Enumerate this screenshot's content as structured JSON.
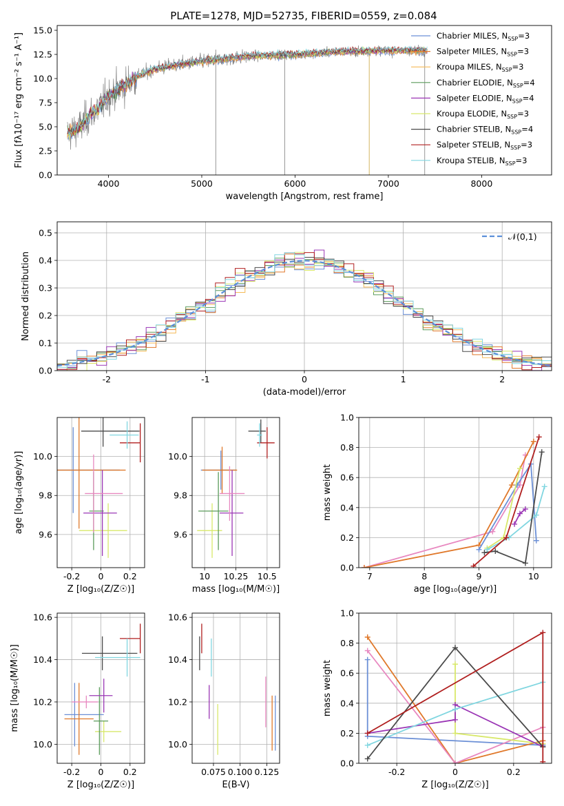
{
  "figure_title": "PLATE=1278, MJD=52735, FIBERID=0559, z=0.084",
  "colors": {
    "Chabrier MILES": "#6b8fd6",
    "Salpeter MILES": "#e0782a",
    "Kroupa MILES": "#f5b955",
    "Chabrier ELODIE": "#5a9a5a",
    "Salpeter ELODIE": "#9a35b5",
    "Kroupa ELODIE": "#d8e86a",
    "Chabrier STELIB": "#4a4a4a",
    "Salpeter STELIB": "#b01e1e",
    "Kroupa STELIB": "#80d6e0",
    "pink": "#e888c0",
    "normal_curve": "#5b8fd9",
    "data": "#7f7f7f"
  },
  "chart_data": [
    {
      "id": "spectrum",
      "type": "line",
      "xlabel": "wavelength [Angstrom, rest frame]",
      "ylabel": "Flux [fλ10⁻¹⁷ erg cm⁻² s⁻¹ A⁻¹]",
      "xlim": [
        3450,
        8750
      ],
      "ylim": [
        0,
        15.5
      ],
      "xticks": [
        4000,
        5000,
        6000,
        7000,
        8000
      ],
      "yticks": [
        0.0,
        2.5,
        5.0,
        7.5,
        10.0,
        12.5,
        15.0
      ],
      "legend_position": "upper-right",
      "continuum": {
        "x": [
          3550,
          3700,
          3800,
          3900,
          4000,
          4100,
          4200,
          4300,
          4500,
          4800,
          5100,
          5500,
          6000,
          6500,
          7000,
          7400
        ],
        "y": [
          4.2,
          5.0,
          6.2,
          7.0,
          8.2,
          8.8,
          9.4,
          10.2,
          11.0,
          11.5,
          11.9,
          12.3,
          12.5,
          12.8,
          12.9,
          12.9
        ]
      },
      "legend": [
        {
          "name": "Chabrier MILES",
          "nssp": 3
        },
        {
          "name": "Salpeter MILES",
          "nssp": 3
        },
        {
          "name": "Kroupa MILES",
          "nssp": 3
        },
        {
          "name": "Chabrier ELODIE",
          "nssp": 4
        },
        {
          "name": "Salpeter ELODIE",
          "nssp": 4
        },
        {
          "name": "Kroupa ELODIE",
          "nssp": 3
        },
        {
          "name": "Chabrier STELIB",
          "nssp": 4
        },
        {
          "name": "Salpeter STELIB",
          "nssp": 3
        },
        {
          "name": "Kroupa STELIB",
          "nssp": 3
        }
      ]
    },
    {
      "id": "residuals",
      "type": "histogram",
      "xlabel": "(data-model)/error",
      "ylabel": "Normed distribution",
      "xlim": [
        -2.5,
        2.5
      ],
      "ylim": [
        0,
        0.54
      ],
      "xticks": [
        -2,
        -1,
        0,
        1,
        2
      ],
      "yticks": [
        0.0,
        0.1,
        0.2,
        0.3,
        0.4,
        0.5
      ],
      "grid": true,
      "legend_position": "upper-right",
      "normal_label": "𝒩(0,1)",
      "bin_edges_start": -2.5,
      "bin_width": 0.1
    },
    {
      "id": "age_vs_Z",
      "type": "errorbar",
      "xlabel": "Z [log₁₀(Z/Z☉)]",
      "ylabel": "age  [log₁₀(age/yr)]",
      "xlim": [
        -0.3,
        0.3
      ],
      "ylim": [
        9.43,
        10.2
      ],
      "xticks": [
        -0.2,
        0.0,
        0.2
      ],
      "yticks": [
        9.6,
        9.8,
        10.0
      ],
      "grid": true,
      "points": [
        {
          "series": "Chabrier MILES",
          "x": -0.19,
          "y": 9.93,
          "xerr": [
            0.24,
            0.32
          ],
          "yerr": 0.22
        },
        {
          "series": "Salpeter MILES",
          "x": -0.15,
          "y": 9.93,
          "xerr": [
            0.24,
            0.32
          ],
          "yerr": 0.3
        },
        {
          "series": "Kroupa ELODIE",
          "x": 0.05,
          "y": 9.62,
          "xerr": [
            0.2,
            0.13
          ],
          "yerr": 0.14
        },
        {
          "series": "Chabrier ELODIE",
          "x": -0.05,
          "y": 9.72,
          "xerr": [
            0.03,
            0.07
          ],
          "yerr": 0.2
        },
        {
          "series": "Salpeter ELODIE",
          "x": 0.01,
          "y": 9.71,
          "xerr": [
            0.13,
            0.1
          ],
          "yerr": 0.22
        },
        {
          "series": "Chabrier STELIB",
          "x": 0.015,
          "y": 10.13,
          "xerr": [
            0.15,
            0.25
          ],
          "yerr": 0.08
        },
        {
          "series": "Salpeter STELIB",
          "x": 0.27,
          "y": 10.07,
          "xerr": [
            0.14,
            0.0
          ],
          "yerr": 0.1
        },
        {
          "series": "Kroupa STELIB",
          "x": 0.18,
          "y": 10.11,
          "xerr": [
            0.12,
            0.08
          ],
          "yerr": 0.07
        },
        {
          "series": "pink",
          "x": -0.05,
          "y": 9.81,
          "xerr": [
            0.06,
            0.2
          ],
          "yerr": 0.2
        }
      ]
    },
    {
      "id": "age_vs_mass",
      "type": "errorbar",
      "xlabel": "mass [log₁₀(M/M☉)]",
      "ylabel": "",
      "xlim": [
        9.9,
        10.6
      ],
      "ylim": [
        9.43,
        10.2
      ],
      "xticks": [
        10.0,
        10.25,
        10.5
      ],
      "yticks": [
        9.6,
        9.8,
        10.0
      ],
      "grid": true,
      "points": [
        {
          "series": "Chabrier MILES",
          "x": 10.13,
          "y": 9.93,
          "xerr": [
            0.16,
            0.12
          ],
          "yerr": 0.1
        },
        {
          "series": "Salpeter MILES",
          "x": 10.14,
          "y": 9.93,
          "xerr": [
            0.16,
            0.12
          ],
          "yerr": 0.12
        },
        {
          "series": "Kroupa ELODIE",
          "x": 10.06,
          "y": 9.62,
          "xerr": [
            0.12,
            0.08
          ],
          "yerr": 0.14
        },
        {
          "series": "Chabrier ELODIE",
          "x": 10.11,
          "y": 9.72,
          "xerr": [
            0.16,
            0.08
          ],
          "yerr": 0.2
        },
        {
          "series": "Salpeter ELODIE",
          "x": 10.22,
          "y": 9.71,
          "xerr": [
            0.1,
            0.09
          ],
          "yerr": 0.22
        },
        {
          "series": "Chabrier STELIB",
          "x": 10.45,
          "y": 10.13,
          "xerr": [
            0.1,
            0.04
          ],
          "yerr": 0.06
        },
        {
          "series": "Salpeter STELIB",
          "x": 10.5,
          "y": 10.07,
          "xerr": [
            0.08,
            0.06
          ],
          "yerr": 0.08
        },
        {
          "series": "Kroupa STELIB",
          "x": 10.44,
          "y": 10.11,
          "xerr": [
            0.02,
            0.02
          ],
          "yerr": 0.06
        },
        {
          "series": "pink",
          "x": 10.2,
          "y": 9.81,
          "xerr": [
            0.08,
            0.12
          ],
          "yerr": 0.14
        }
      ]
    },
    {
      "id": "weight_vs_age",
      "type": "line",
      "xlabel": "age  [log₁₀(age/yr)]",
      "ylabel": "mass weight",
      "xlim": [
        6.8,
        10.33
      ],
      "ylim": [
        0,
        1.0
      ],
      "xticks": [
        7,
        8,
        9,
        10
      ],
      "yticks": [
        0.0,
        0.2,
        0.4,
        0.6,
        0.8,
        1.0
      ],
      "grid": true,
      "series": [
        {
          "name": "pink",
          "x": [
            6.9,
            9.25,
            9.75,
            9.85
          ],
          "y": [
            0.0,
            0.24,
            0.55,
            0.75
          ]
        },
        {
          "name": "Salpeter MILES",
          "x": [
            6.9,
            9.0,
            9.6,
            10.0
          ],
          "y": [
            0.0,
            0.15,
            0.55,
            0.84
          ]
        },
        {
          "name": "Chabrier MILES",
          "x": [
            9.0,
            9.7,
            9.95,
            10.05
          ],
          "y": [
            0.12,
            0.55,
            0.69,
            0.18
          ]
        },
        {
          "name": "Kroupa ELODIE",
          "x": [
            9.15,
            9.45,
            9.75
          ],
          "y": [
            0.13,
            0.2,
            0.66
          ]
        },
        {
          "name": "Kroupa STELIB",
          "x": [
            9.15,
            9.55,
            10.05,
            10.2
          ],
          "y": [
            0.12,
            0.2,
            0.35,
            0.54
          ]
        },
        {
          "name": "Salpeter ELODIE",
          "x": [
            9.65,
            9.75,
            9.85
          ],
          "y": [
            0.29,
            0.36,
            0.39
          ]
        },
        {
          "name": "Chabrier STELIB",
          "x": [
            9.1,
            9.3,
            9.85,
            10.15
          ],
          "y": [
            0.1,
            0.11,
            0.03,
            0.77
          ]
        },
        {
          "name": "Salpeter STELIB",
          "x": [
            8.9,
            9.5,
            10.1
          ],
          "y": [
            0.01,
            0.2,
            0.87
          ]
        }
      ]
    },
    {
      "id": "mass_vs_Z",
      "type": "errorbar",
      "xlabel": "Z [log₁₀(Z/Z☉)]",
      "ylabel": "mass [log₁₀(M/M☉)]",
      "xlim": [
        -0.3,
        0.3
      ],
      "ylim": [
        9.91,
        10.62
      ],
      "xticks": [
        -0.2,
        0.0,
        0.2
      ],
      "yticks": [
        10.0,
        10.2,
        10.4,
        10.6
      ],
      "grid": true,
      "points": [
        {
          "series": "Chabrier MILES",
          "x": -0.18,
          "y": 10.14,
          "xerr": [
            0.07,
            0.2
          ],
          "yerr": 0.15
        },
        {
          "series": "Salpeter MILES",
          "x": -0.15,
          "y": 10.12,
          "xerr": [
            0.1,
            0.1
          ],
          "yerr": 0.17
        },
        {
          "series": "pink",
          "x": -0.1,
          "y": 10.2,
          "xerr": [
            0.1,
            0.08
          ],
          "yerr": 0.03
        },
        {
          "series": "Kroupa ELODIE",
          "x": 0.02,
          "y": 10.06,
          "xerr": [
            0.06,
            0.12
          ],
          "yerr": 0.05
        },
        {
          "series": "Chabrier ELODIE",
          "x": -0.01,
          "y": 10.11,
          "xerr": [
            0.04,
            0.06
          ],
          "yerr": 0.16
        },
        {
          "series": "Salpeter ELODIE",
          "x": 0.02,
          "y": 10.23,
          "xerr": [
            0.1,
            0.06
          ],
          "yerr": 0.08
        },
        {
          "series": "Chabrier STELIB",
          "x": 0.01,
          "y": 10.43,
          "xerr": [
            0.14,
            0.24
          ],
          "yerr": 0.08
        },
        {
          "series": "Salpeter STELIB",
          "x": 0.27,
          "y": 10.5,
          "xerr": [
            0.14,
            0.0
          ],
          "yerr": 0.07
        },
        {
          "series": "Kroupa STELIB",
          "x": 0.18,
          "y": 10.41,
          "xerr": [
            0.22,
            0.09
          ],
          "yerr": 0.09
        }
      ]
    },
    {
      "id": "mass_vs_EBV",
      "type": "errorbar",
      "xlabel": "E(B-V)",
      "ylabel": "",
      "xlim": [
        0.055,
        0.137
      ],
      "ylim": [
        9.91,
        10.62
      ],
      "xticks": [
        0.075,
        0.1,
        0.125
      ],
      "xticklabels": [
        "0.075",
        "0.100",
        "0.125"
      ],
      "yticks": [
        10.0,
        10.2,
        10.4,
        10.6
      ],
      "grid": true,
      "points": [
        {
          "series": "Chabrier STELIB",
          "x": 0.062,
          "y": 10.43,
          "xerr": [
            0,
            0
          ],
          "yerr": 0.08
        },
        {
          "series": "Salpeter STELIB",
          "x": 0.064,
          "y": 10.5,
          "xerr": [
            0,
            0
          ],
          "yerr": 0.07
        },
        {
          "series": "Kroupa STELIB",
          "x": 0.073,
          "y": 10.41,
          "xerr": [
            0,
            0
          ],
          "yerr": 0.09
        },
        {
          "series": "Salpeter ELODIE",
          "x": 0.071,
          "y": 10.2,
          "xerr": [
            0,
            0
          ],
          "yerr": 0.08
        },
        {
          "series": "Kroupa ELODIE",
          "x": 0.079,
          "y": 10.07,
          "xerr": [
            0,
            0
          ],
          "yerr": 0.12
        },
        {
          "series": "pink",
          "x": 0.124,
          "y": 10.2,
          "xerr": [
            0,
            0
          ],
          "yerr": 0.12
        },
        {
          "series": "Salpeter MILES",
          "x": 0.13,
          "y": 10.1,
          "xerr": [
            0,
            0
          ],
          "yerr": 0.13
        },
        {
          "series": "Chabrier MILES",
          "x": 0.133,
          "y": 10.1,
          "xerr": [
            0,
            0
          ],
          "yerr": 0.13
        }
      ]
    },
    {
      "id": "weight_vs_Z",
      "type": "line",
      "xlabel": "Z [log₁₀(Z/Z☉)]",
      "ylabel": "mass weight",
      "xlim": [
        -0.33,
        0.33
      ],
      "ylim": [
        0,
        1.0
      ],
      "xticks": [
        -0.2,
        0.0,
        0.2
      ],
      "yticks": [
        0.0,
        0.2,
        0.4,
        0.6,
        0.8,
        1.0
      ],
      "grid": true,
      "series": [
        {
          "name": "Chabrier MILES",
          "x": [
            -0.3,
            -0.3,
            0.3,
            0.3
          ],
          "y": [
            0.69,
            0.18,
            0.12,
            0.12
          ]
        },
        {
          "name": "Salpeter MILES",
          "x": [
            -0.3,
            0.0,
            0.3,
            0.3
          ],
          "y": [
            0.84,
            0.0,
            0.15,
            0.15
          ]
        },
        {
          "name": "pink",
          "x": [
            -0.3,
            0.0,
            0.3,
            0.3
          ],
          "y": [
            0.75,
            0.0,
            0.24,
            0.24
          ]
        },
        {
          "name": "Kroupa ELODIE",
          "x": [
            0.0,
            0.0,
            0.3,
            0.3
          ],
          "y": [
            0.66,
            0.2,
            0.13,
            0.13
          ]
        },
        {
          "name": "Salpeter ELODIE",
          "x": [
            -0.3,
            0.0,
            0.0,
            0.3
          ],
          "y": [
            0.2,
            0.29,
            0.39,
            0.11
          ]
        },
        {
          "name": "Kroupa STELIB",
          "x": [
            -0.3,
            0.0,
            0.3
          ],
          "y": [
            0.12,
            0.36,
            0.54
          ]
        },
        {
          "name": "Chabrier STELIB",
          "x": [
            -0.3,
            0.0,
            0.3,
            0.3
          ],
          "y": [
            0.03,
            0.77,
            0.11,
            0.11
          ]
        },
        {
          "name": "Salpeter STELIB",
          "x": [
            -0.3,
            0.3,
            0.3
          ],
          "y": [
            0.2,
            0.87,
            0.01
          ]
        }
      ]
    }
  ]
}
